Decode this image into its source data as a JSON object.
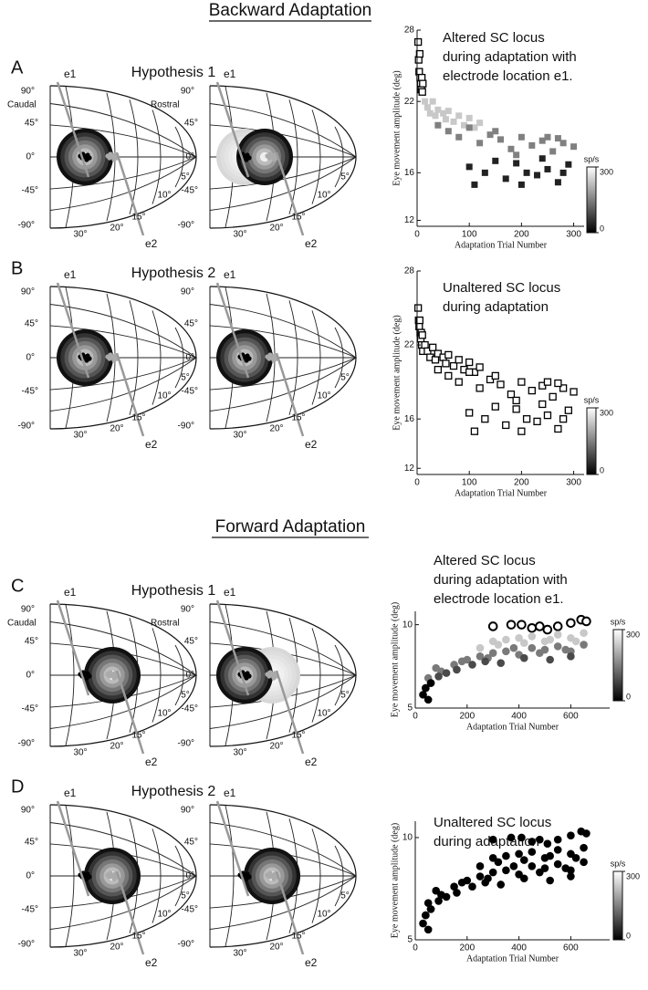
{
  "sections": [
    "Backward Adaptation",
    "Forward Adaptation"
  ],
  "map_labels": {
    "elevation": [
      "90°",
      "45°",
      "0°",
      "-45°",
      "-90°"
    ],
    "amplitude": [
      "30°",
      "20°",
      "15°",
      "10°",
      "5°"
    ],
    "electrodes": [
      "e1",
      "e2"
    ],
    "sides": [
      "Caudal",
      "Rostral"
    ]
  },
  "panels": [
    {
      "letter": "A",
      "hypothesis": "Hypothesis 1",
      "show_sides": true
    },
    {
      "letter": "B",
      "hypothesis": "Hypothesis 2",
      "show_sides": false
    },
    {
      "letter": "C",
      "hypothesis": "Hypothesis 1",
      "show_sides": true
    },
    {
      "letter": "D",
      "hypothesis": "Hypothesis 2",
      "show_sides": false
    }
  ],
  "chart_data": [
    {
      "type": "scatter",
      "marker": "square",
      "annotation": [
        "Altered SC locus",
        "during adaptation with",
        "electrode location e1."
      ],
      "xlabel": "Adaptation Trial Number",
      "ylabel": "Eye movement amplitude (deg)",
      "xlim": [
        0,
        320
      ],
      "xticks": [
        0,
        100,
        200,
        300
      ],
      "ylim": [
        11.5,
        28
      ],
      "yticks": [
        12,
        16,
        22,
        28
      ],
      "colorbar": {
        "label": "sp/s",
        "lim": [
          0,
          300
        ],
        "ticks": [
          0,
          300
        ]
      },
      "series": [
        {
          "color": "#ffffff",
          "edgecolor": "#000000",
          "x": [
            2,
            3,
            4,
            5,
            6,
            7,
            8,
            9,
            10,
            11
          ],
          "values": [
            27,
            25.5,
            24.5,
            26,
            24,
            23.5,
            23,
            24,
            22.8,
            23.5
          ]
        },
        {
          "color": "#c8c8c8",
          "x": [
            15,
            20,
            25,
            30,
            35,
            40,
            50,
            55,
            60,
            70,
            80,
            90,
            100,
            110,
            120
          ],
          "values": [
            22,
            21.5,
            21,
            22,
            20.8,
            21.3,
            21,
            20.5,
            21.2,
            20.3,
            20.8,
            20,
            20.6,
            19.8,
            20.2
          ]
        },
        {
          "color": "#808080",
          "x": [
            40,
            60,
            80,
            100,
            120,
            140,
            160,
            180,
            200,
            220,
            240,
            260,
            280,
            300,
            150,
            250,
            190,
            270
          ],
          "values": [
            20,
            19.5,
            19,
            19.8,
            18.5,
            19.2,
            18.8,
            18,
            19,
            18.3,
            18.7,
            17.8,
            18.5,
            18.2,
            19.5,
            19,
            17.5,
            18.9
          ]
        },
        {
          "color": "#222222",
          "x": [
            100,
            110,
            130,
            150,
            170,
            190,
            210,
            230,
            250,
            270,
            290,
            200,
            240,
            280
          ],
          "values": [
            16.5,
            15,
            16,
            17,
            15.5,
            16.8,
            16,
            15.8,
            16.3,
            15.2,
            16.7,
            15,
            17.2,
            16
          ]
        }
      ]
    },
    {
      "type": "scatter",
      "marker": "square",
      "annotation": [
        "Unaltered SC locus",
        "during adaptation"
      ],
      "xlabel": "Adaptation Trial Number",
      "ylabel": "Eye movement amplitude (deg)",
      "xlim": [
        0,
        320
      ],
      "xticks": [
        0,
        100,
        200,
        300
      ],
      "ylim": [
        11.5,
        28
      ],
      "yticks": [
        12,
        16,
        22,
        28
      ],
      "colorbar": {
        "label": "sp/s",
        "lim": [
          0,
          300
        ],
        "ticks": [
          0,
          300
        ]
      },
      "series": [
        {
          "color": "#ffffff",
          "edgecolor": "#000000",
          "x": [
            2,
            3,
            4,
            5,
            6,
            7,
            8,
            9,
            10,
            11,
            15,
            20,
            25,
            30,
            35,
            40,
            50,
            55,
            60,
            70,
            80,
            90,
            100,
            110,
            120,
            40,
            60,
            80,
            100,
            120,
            140,
            160,
            180,
            200,
            220,
            240,
            260,
            280,
            300,
            150,
            250,
            190,
            270,
            100,
            110,
            130,
            150,
            170,
            190,
            210,
            230,
            250,
            270,
            290,
            200,
            240,
            280
          ],
          "values": [
            25,
            24,
            23.5,
            24,
            23,
            22.5,
            23,
            22,
            22.8,
            21.5,
            22,
            21.5,
            21,
            21.8,
            20.8,
            21.3,
            21,
            20.5,
            21.2,
            20.3,
            20.8,
            20,
            20.6,
            19.8,
            20.2,
            20,
            19.5,
            19,
            19.8,
            18.5,
            19.2,
            18.8,
            18,
            19,
            18.3,
            18.7,
            17.8,
            18.5,
            18.2,
            19.5,
            19,
            17.5,
            18.9,
            16.5,
            15,
            16,
            17,
            15.5,
            16.8,
            16,
            15.8,
            16.3,
            15.2,
            16.7,
            15,
            17.2,
            16
          ]
        }
      ]
    },
    {
      "type": "scatter",
      "marker": "circle",
      "annotation": [
        "Altered SC locus",
        "during adaptation with",
        "electrode location e1."
      ],
      "xlabel": "Adaptation Trial Number",
      "ylabel": "Eye movement amplitude (deg)",
      "xlim": [
        0,
        750
      ],
      "xticks": [
        0,
        200,
        400,
        600
      ],
      "ylim": [
        5,
        10.8
      ],
      "yticks": [
        5,
        10
      ],
      "colorbar": {
        "label": "sp/s",
        "lim": [
          0,
          300
        ],
        "ticks": [
          0,
          300
        ]
      },
      "series": [
        {
          "color": "#ffffff",
          "edgecolor": "#000000",
          "x": [
            300,
            370,
            410,
            450,
            480,
            510,
            550,
            600,
            640,
            660
          ],
          "values": [
            9.9,
            10,
            10,
            9.8,
            9.9,
            9.7,
            9.9,
            10.1,
            10.3,
            10.2
          ]
        },
        {
          "color": "#c8c8c8",
          "x": [
            250,
            300,
            350,
            400,
            450,
            500,
            550,
            600,
            650,
            320,
            420,
            520,
            620
          ],
          "values": [
            8.6,
            9,
            9.1,
            9.2,
            9.3,
            9,
            9.4,
            9.2,
            9.5,
            8.8,
            8.9,
            9.1,
            9.0
          ]
        },
        {
          "color": "#7a7a7a",
          "x": [
            50,
            100,
            150,
            200,
            250,
            300,
            350,
            400,
            450,
            500,
            550,
            600,
            650,
            80,
            180,
            280,
            380,
            480,
            580
          ],
          "values": [
            6.8,
            7.2,
            7.6,
            7.9,
            8.1,
            8.3,
            8.4,
            8.2,
            8.6,
            8.5,
            8.7,
            8.4,
            8.8,
            7.4,
            7.8,
            8.0,
            8.6,
            8.3,
            8.5
          ]
        },
        {
          "color": "#4a4a4a",
          "x": [
            40,
            60,
            90,
            120,
            160,
            220,
            270,
            330,
            420,
            520,
            600
          ],
          "values": [
            6.2,
            6.5,
            6.9,
            7.1,
            7.3,
            7.6,
            7.8,
            7.7,
            8.0,
            7.9,
            8.1
          ]
        },
        {
          "color": "#000000",
          "x": [
            30,
            40,
            50,
            60
          ],
          "values": [
            5.8,
            6.2,
            5.5,
            6.5
          ]
        }
      ]
    },
    {
      "type": "scatter",
      "marker": "circle",
      "annotation": [
        "Unaltered SC locus",
        "during adaptation"
      ],
      "xlabel": "Adaptation Trial Number",
      "ylabel": "Eye movement amplitude (deg)",
      "xlim": [
        0,
        750
      ],
      "xticks": [
        0,
        200,
        400,
        600
      ],
      "ylim": [
        5,
        10.8
      ],
      "yticks": [
        5,
        10
      ],
      "colorbar": {
        "label": "sp/s",
        "lim": [
          0,
          300
        ],
        "ticks": [
          0,
          300
        ]
      },
      "series": [
        {
          "color": "#000000",
          "x": [
            300,
            370,
            410,
            450,
            480,
            510,
            550,
            600,
            640,
            660,
            250,
            300,
            350,
            400,
            450,
            500,
            550,
            600,
            650,
            320,
            420,
            520,
            620,
            50,
            100,
            150,
            200,
            250,
            300,
            350,
            400,
            450,
            500,
            550,
            600,
            650,
            80,
            180,
            280,
            380,
            480,
            580,
            40,
            60,
            90,
            120,
            160,
            220,
            270,
            330,
            420,
            520,
            600,
            30,
            40,
            50,
            60
          ],
          "values": [
            9.9,
            10,
            10,
            9.8,
            9.9,
            9.7,
            9.9,
            10.1,
            10.3,
            10.2,
            8.6,
            9,
            9.1,
            9.2,
            9.3,
            9,
            9.4,
            9.2,
            9.5,
            8.8,
            8.9,
            9.1,
            9.0,
            6.8,
            7.2,
            7.6,
            7.9,
            8.1,
            8.3,
            8.4,
            8.2,
            8.6,
            8.5,
            8.7,
            8.4,
            8.8,
            7.4,
            7.8,
            8.0,
            8.6,
            8.3,
            8.5,
            6.2,
            6.5,
            6.9,
            7.1,
            7.3,
            7.6,
            7.8,
            7.7,
            8.0,
            7.9,
            8.1,
            5.8,
            6.2,
            5.5,
            6.5
          ]
        }
      ]
    }
  ]
}
